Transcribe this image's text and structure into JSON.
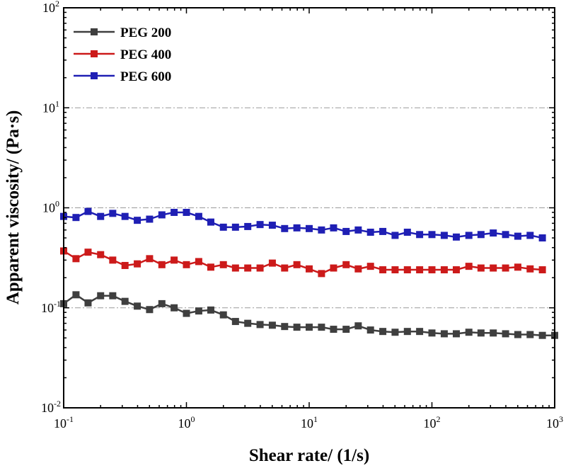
{
  "chart_data": {
    "type": "line",
    "xlabel": "Shear rate/ (1/s)",
    "ylabel": "Apparent viscosity/ (Pa·s)",
    "xscale": "log",
    "yscale": "log",
    "xlim": [
      0.1,
      1000
    ],
    "ylim": [
      0.01,
      100
    ],
    "x_ticks": [
      {
        "base": "10",
        "exp": "-1"
      },
      {
        "base": "10",
        "exp": "0"
      },
      {
        "base": "10",
        "exp": "1"
      },
      {
        "base": "10",
        "exp": "2"
      },
      {
        "base": "10",
        "exp": "3"
      }
    ],
    "y_ticks": [
      {
        "base": "10",
        "exp": "-2"
      },
      {
        "base": "10",
        "exp": "-1"
      },
      {
        "base": "10",
        "exp": "0"
      },
      {
        "base": "10",
        "exp": "1"
      },
      {
        "base": "10",
        "exp": "2"
      }
    ],
    "grid": "horizontal dash-dot at major y ticks",
    "legend_position": "top-left",
    "series": [
      {
        "name": "PEG 200",
        "color": "#3f3f3f",
        "marker": "square",
        "x": [
          0.1,
          0.126,
          0.158,
          0.2,
          0.251,
          0.316,
          0.398,
          0.501,
          0.631,
          0.794,
          1.0,
          1.26,
          1.58,
          2.0,
          2.51,
          3.16,
          3.98,
          5.01,
          6.31,
          7.94,
          10.0,
          12.6,
          15.8,
          20.0,
          25.1,
          31.6,
          39.8,
          50.1,
          63.1,
          79.4,
          100,
          126,
          158,
          200,
          251,
          316,
          398,
          501,
          631,
          794,
          1000
        ],
        "y": [
          0.11,
          0.135,
          0.112,
          0.132,
          0.132,
          0.116,
          0.104,
          0.096,
          0.11,
          0.1,
          0.088,
          0.093,
          0.095,
          0.085,
          0.073,
          0.07,
          0.068,
          0.067,
          0.065,
          0.064,
          0.064,
          0.064,
          0.061,
          0.061,
          0.066,
          0.06,
          0.058,
          0.057,
          0.058,
          0.058,
          0.056,
          0.055,
          0.055,
          0.057,
          0.056,
          0.056,
          0.055,
          0.054,
          0.054,
          0.053,
          0.053
        ]
      },
      {
        "name": "PEG 400",
        "color": "#cc1a1a",
        "marker": "square",
        "x": [
          0.1,
          0.126,
          0.158,
          0.2,
          0.251,
          0.316,
          0.398,
          0.501,
          0.631,
          0.794,
          1.0,
          1.26,
          1.58,
          2.0,
          2.51,
          3.16,
          3.98,
          5.01,
          6.31,
          7.94,
          10.0,
          12.6,
          15.8,
          20.0,
          25.1,
          31.6,
          39.8,
          50.1,
          63.1,
          79.4,
          100,
          126,
          158,
          200,
          251,
          316,
          398,
          501,
          631,
          794
        ],
        "y": [
          0.37,
          0.31,
          0.36,
          0.34,
          0.3,
          0.265,
          0.275,
          0.31,
          0.27,
          0.3,
          0.27,
          0.29,
          0.255,
          0.27,
          0.25,
          0.25,
          0.25,
          0.28,
          0.25,
          0.27,
          0.245,
          0.22,
          0.25,
          0.27,
          0.245,
          0.26,
          0.24,
          0.24,
          0.24,
          0.24,
          0.24,
          0.24,
          0.24,
          0.26,
          0.25,
          0.25,
          0.25,
          0.255,
          0.245,
          0.24
        ]
      },
      {
        "name": "PEG 600",
        "color": "#1f1fb4",
        "marker": "square",
        "x": [
          0.1,
          0.126,
          0.158,
          0.2,
          0.251,
          0.316,
          0.398,
          0.501,
          0.631,
          0.794,
          1.0,
          1.26,
          1.58,
          2.0,
          2.51,
          3.16,
          3.98,
          5.01,
          6.31,
          7.94,
          10.0,
          12.6,
          15.8,
          20.0,
          25.1,
          31.6,
          39.8,
          50.1,
          63.1,
          79.4,
          100,
          126,
          158,
          200,
          251,
          316,
          398,
          501,
          631,
          794
        ],
        "y": [
          0.82,
          0.8,
          0.92,
          0.82,
          0.88,
          0.82,
          0.75,
          0.77,
          0.85,
          0.9,
          0.9,
          0.82,
          0.72,
          0.64,
          0.64,
          0.65,
          0.68,
          0.67,
          0.62,
          0.63,
          0.62,
          0.6,
          0.63,
          0.58,
          0.6,
          0.57,
          0.58,
          0.53,
          0.57,
          0.54,
          0.54,
          0.53,
          0.51,
          0.53,
          0.54,
          0.56,
          0.54,
          0.52,
          0.53,
          0.5
        ]
      }
    ]
  }
}
